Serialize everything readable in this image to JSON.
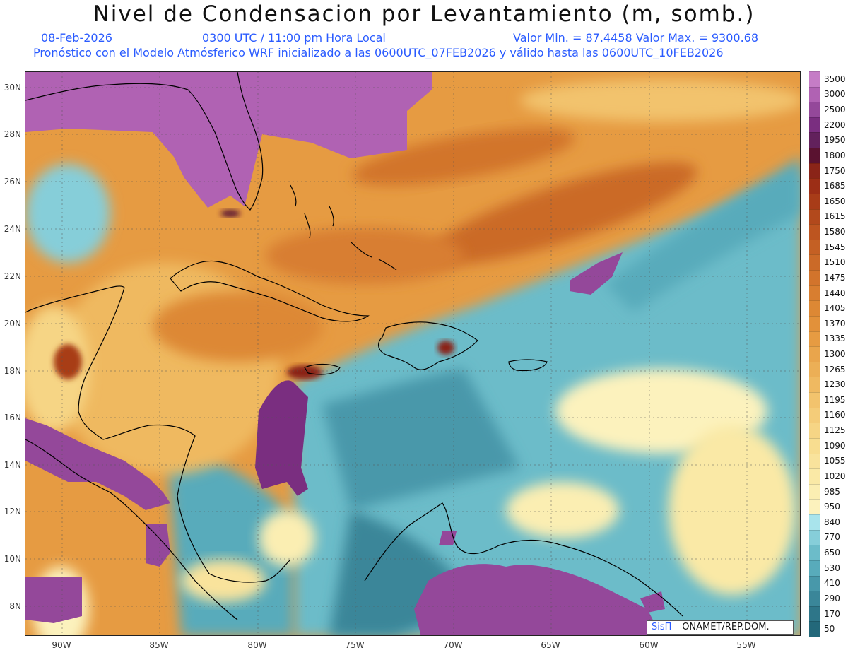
{
  "header": {
    "title": "Nivel de Condensacion por Levantamiento (m, somb.)",
    "date": "08-Feb-2026",
    "time": "0300 UTC / 11:00 pm Hora Local",
    "min_max": "Valor Min. = 87.4458   Valor Max. = 9300.68",
    "forecast": "Pronóstico con el Modelo Atmósferico WRF inicializado a las 0600UTC_07FEB2026 y válido hasta las  0600UTC_10FEB2026"
  },
  "axes": {
    "lat_labels": [
      "30N",
      "28N",
      "26N",
      "24N",
      "22N",
      "20N",
      "18N",
      "16N",
      "14N",
      "12N",
      "10N",
      "8N"
    ],
    "lon_labels": [
      "90W",
      "85W",
      "80W",
      "75W",
      "70W",
      "65W",
      "60W",
      "55W"
    ]
  },
  "colorbar": {
    "labels": [
      "3500",
      "3000",
      "2500",
      "2200",
      "1950",
      "1800",
      "1750",
      "1685",
      "1650",
      "1615",
      "1580",
      "1545",
      "1510",
      "1475",
      "1440",
      "1405",
      "1370",
      "1335",
      "1300",
      "1265",
      "1230",
      "1195",
      "1160",
      "1125",
      "1090",
      "1055",
      "1020",
      "985",
      "950",
      "840",
      "770",
      "650",
      "530",
      "410",
      "290",
      "170",
      "50"
    ],
    "colors": [
      "#c57cc6",
      "#b062b3",
      "#94489a",
      "#7a2e80",
      "#62215c",
      "#5a1230",
      "#8a2418",
      "#9c2e16",
      "#a83c18",
      "#b2491c",
      "#bd5520",
      "#c46024",
      "#cb6a28",
      "#d2742c",
      "#d87e30",
      "#dd8834",
      "#e2913a",
      "#e69b42",
      "#e9a54c",
      "#ecaf56",
      "#efb961",
      "#f2c36d",
      "#f4cc79",
      "#f6d585",
      "#f8dd90",
      "#f9e39c",
      "#fae9a6",
      "#fbeeb2",
      "#fcf2bd",
      "#a9e4ec",
      "#86ced9",
      "#6cbcc9",
      "#58abbb",
      "#4898aa",
      "#3a8699",
      "#2e7689",
      "#23687a"
    ]
  },
  "credit": {
    "logo": "SisΠ",
    "text": "– ONAMET/REP.DOM."
  }
}
